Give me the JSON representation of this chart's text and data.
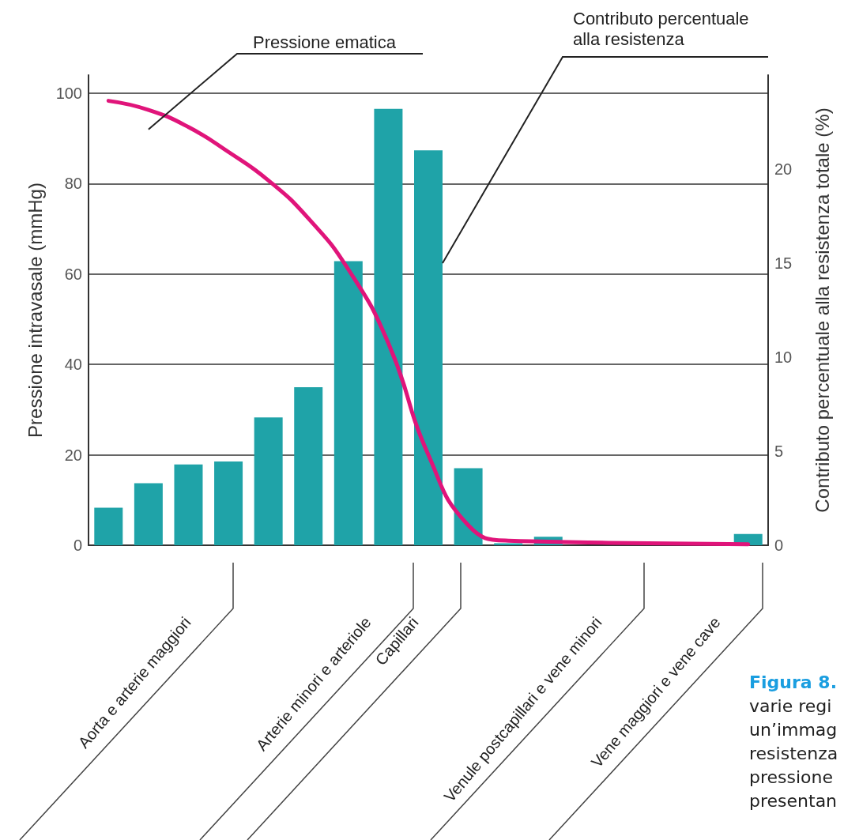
{
  "chart_data": {
    "type": "bar",
    "categories": [
      null,
      null,
      null,
      null,
      null,
      null,
      null,
      null,
      null,
      null,
      null,
      null,
      null,
      null,
      null,
      null,
      null
    ],
    "series": [
      {
        "name": "Contributo percentuale alla resistenza",
        "axis": "y2",
        "color": "#1fa3a8",
        "values": [
          2.0,
          3.3,
          4.3,
          4.45,
          6.8,
          8.4,
          15.1,
          23.2,
          21.0,
          4.1,
          0.1,
          0.45,
          null,
          null,
          null,
          null,
          0.6
        ]
      },
      {
        "name": "Pressione ematica",
        "type": "line",
        "color": "#e0147a",
        "values": [
          98.3,
          96.3,
          92.5,
          87,
          80.7,
          72.3,
          61,
          44.7,
          20,
          4.4,
          1,
          0.8,
          0.6,
          0.5,
          0.4,
          0.3,
          0.2
        ]
      }
    ],
    "ylabel": "Pressione intravasale (mmHg)",
    "y2label": "Contributo percentuale alla resistenza totale (%)",
    "ylim": [
      0,
      104
    ],
    "yticks": [
      0,
      20,
      40,
      60,
      80,
      100
    ],
    "y2lim": [
      0,
      25
    ],
    "y2ticks": [
      0,
      5,
      10,
      15,
      20
    ],
    "grid": "y",
    "legend": false,
    "marker": "none",
    "line_style": "solid",
    "annotations": [
      "Aorta e arterie maggiori",
      "Arterie minori e arteriole",
      "Capillari",
      "Venule postcapillari e vene minori",
      "Vene maggiori e vene cave",
      "Figura 8.",
      "varie regi",
      "un’immag",
      "resistenza",
      "pressione",
      "presentan"
    ]
  }
}
